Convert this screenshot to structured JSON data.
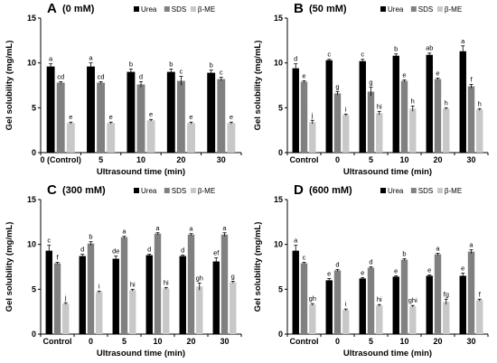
{
  "chart_data": [
    {
      "type": "bar",
      "panel_letter": "A",
      "panel_label": "(0 mM)",
      "categories": [
        "0 (Control)",
        "5",
        "10",
        "20",
        "30"
      ],
      "xlabel": "Ultrasound time (min)",
      "ylabel": "Gel solubility (mg/mL)",
      "ylim": [
        0,
        15
      ],
      "yticks": [
        "0",
        "5",
        "10",
        "15"
      ],
      "legend_position": "top",
      "series": [
        {
          "name": "Urea",
          "color": "#000000",
          "values": [
            9.6,
            9.6,
            9.0,
            9.0,
            8.9
          ],
          "errors": [
            0.3,
            0.4,
            0.3,
            0.3,
            0.3
          ],
          "labels": [
            "a",
            "a",
            "b",
            "b",
            "b"
          ]
        },
        {
          "name": "SDS",
          "color": "#808080",
          "values": [
            7.8,
            7.8,
            7.6,
            8.0,
            8.2
          ],
          "errors": [
            0.1,
            0.1,
            0.3,
            0.5,
            0.2
          ],
          "labels": [
            "cd",
            "cd",
            "d",
            "c",
            "c"
          ]
        },
        {
          "name": "β-ME",
          "color": "#c8c8c8",
          "values": [
            3.3,
            3.3,
            3.6,
            3.3,
            3.3
          ],
          "errors": [
            0.1,
            0.1,
            0.1,
            0.1,
            0.1
          ],
          "labels": [
            "e",
            "e",
            "e",
            "e",
            "e"
          ]
        }
      ]
    },
    {
      "type": "bar",
      "panel_letter": "B",
      "panel_label": "(50 mM)",
      "categories": [
        "Control",
        "0",
        "5",
        "10",
        "20",
        "30"
      ],
      "xlabel": "Ultrasound time (min)",
      "ylabel": "Gel solubility (mg/mL)",
      "ylim": [
        0,
        15
      ],
      "yticks": [
        "0",
        "5",
        "10",
        "15"
      ],
      "legend_position": "top",
      "series": [
        {
          "name": "Urea",
          "color": "#000000",
          "values": [
            9.4,
            10.3,
            10.2,
            10.8,
            10.9,
            11.3
          ],
          "errors": [
            0.5,
            0.1,
            0.2,
            0.2,
            0.2,
            0.6
          ],
          "labels": [
            "d",
            "c",
            "c",
            "b",
            "ab",
            "a"
          ]
        },
        {
          "name": "SDS",
          "color": "#808080",
          "values": [
            7.9,
            6.6,
            6.8,
            8.0,
            8.2,
            7.4
          ],
          "errors": [
            0.1,
            0.2,
            0.5,
            0.1,
            0.1,
            0.2
          ],
          "labels": [
            "e",
            "g",
            "g",
            "e",
            "e",
            "f"
          ]
        },
        {
          "name": "β-ME",
          "color": "#c8c8c8",
          "values": [
            3.4,
            4.2,
            4.4,
            4.9,
            4.9,
            4.8
          ],
          "errors": [
            0.2,
            0.1,
            0.2,
            0.3,
            0.1,
            0.1
          ],
          "labels": [
            "j",
            "i",
            "hi",
            "h",
            "h",
            "h"
          ]
        }
      ]
    },
    {
      "type": "bar",
      "panel_letter": "C",
      "panel_label": "(300 mM)",
      "categories": [
        "Control",
        "0",
        "5",
        "10",
        "20",
        "30"
      ],
      "xlabel": "Ultrasound time (min)",
      "ylabel": "Gel solubility (mg/mL)",
      "ylim": [
        0,
        15
      ],
      "yticks": [
        "0",
        "5",
        "10",
        "15"
      ],
      "legend_position": "top",
      "series": [
        {
          "name": "Urea",
          "color": "#000000",
          "values": [
            9.3,
            8.7,
            8.4,
            8.8,
            8.7,
            8.1
          ],
          "errors": [
            0.6,
            0.2,
            0.3,
            0.1,
            0.1,
            0.4
          ],
          "labels": [
            "c",
            "d",
            "de",
            "d",
            "d",
            "ef"
          ]
        },
        {
          "name": "SDS",
          "color": "#808080",
          "values": [
            7.9,
            10.1,
            10.8,
            11.2,
            11.1,
            11.1
          ],
          "errors": [
            0.1,
            0.2,
            0.1,
            0.1,
            0.1,
            0.2
          ],
          "labels": [
            "f",
            "b",
            "a",
            "a",
            "a",
            "a"
          ]
        },
        {
          "name": "β-ME",
          "color": "#c8c8c8",
          "values": [
            3.4,
            4.7,
            4.9,
            5.1,
            5.3,
            5.8
          ],
          "errors": [
            0.1,
            0.1,
            0.1,
            0.1,
            0.4,
            0.1
          ],
          "labels": [
            "j",
            "i",
            "hi",
            "hi",
            "gh",
            "g"
          ]
        }
      ]
    },
    {
      "type": "bar",
      "panel_letter": "D",
      "panel_label": "(600 mM)",
      "categories": [
        "Control",
        "0",
        "5",
        "10",
        "20",
        "30"
      ],
      "xlabel": "Ultrasound time (min)",
      "ylabel": "Gel solubility (mg/mL)",
      "ylim": [
        0,
        15
      ],
      "yticks": [
        "0",
        "5",
        "10",
        "15"
      ],
      "legend_position": "top",
      "series": [
        {
          "name": "Urea",
          "color": "#000000",
          "values": [
            9.3,
            6.0,
            6.2,
            6.4,
            6.5,
            6.5
          ],
          "errors": [
            0.6,
            0.2,
            0.1,
            0.1,
            0.1,
            0.3
          ],
          "labels": [
            "a",
            "e",
            "e",
            "e",
            "e",
            "e"
          ]
        },
        {
          "name": "SDS",
          "color": "#808080",
          "values": [
            7.9,
            7.1,
            7.4,
            8.3,
            8.9,
            9.2
          ],
          "errors": [
            0.1,
            0.1,
            0.1,
            0.1,
            0.1,
            0.2
          ],
          "labels": [
            "c",
            "d",
            "d",
            "b",
            "a",
            "a"
          ]
        },
        {
          "name": "β-ME",
          "color": "#c8c8c8",
          "values": [
            3.3,
            2.7,
            3.2,
            3.1,
            3.6,
            3.8
          ],
          "errors": [
            0.1,
            0.1,
            0.1,
            0.1,
            0.3,
            0.1
          ],
          "labels": [
            "gh",
            "i",
            "hi",
            "ghi",
            "fg",
            "f"
          ]
        }
      ]
    }
  ]
}
